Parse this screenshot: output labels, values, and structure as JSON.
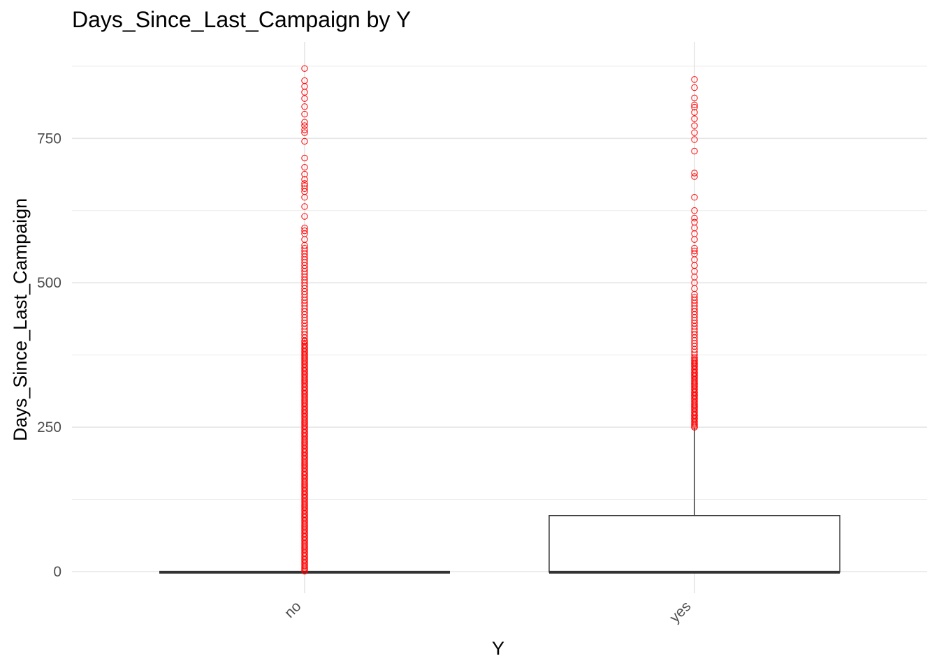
{
  "chart_data": {
    "type": "box",
    "title": "Days_Since_Last_Campaign by Y",
    "xlabel": "Y",
    "ylabel": "Days_Since_Last_Campaign",
    "categories": [
      "no",
      "yes"
    ],
    "ylim": [
      -20,
      880
    ],
    "yticks": [
      0,
      250,
      500,
      750
    ],
    "grid": true,
    "x_tick_rotation": -45,
    "outlier_color": "#ff0000",
    "box_color": "#333333",
    "boxes": [
      {
        "category": "no",
        "min": -1,
        "q1": -1,
        "median": -1,
        "q3": -1,
        "max": -1,
        "outliers": [
          1,
          400,
          405,
          410,
          415,
          420,
          425,
          430,
          435,
          440,
          445,
          450,
          455,
          460,
          465,
          470,
          475,
          480,
          485,
          490,
          495,
          500,
          505,
          510,
          515,
          520,
          525,
          530,
          535,
          540,
          545,
          550,
          555,
          560,
          565,
          575,
          585,
          590,
          595,
          615,
          632,
          648,
          658,
          663,
          668,
          672,
          679,
          688,
          700,
          716,
          745,
          760,
          765,
          772,
          778,
          792,
          805,
          819,
          830,
          840,
          850,
          871
        ]
      },
      {
        "category": "yes",
        "min": -1,
        "q1": -1,
        "median": -1,
        "q3": 97,
        "max": 249,
        "outliers": [
          250,
          255,
          260,
          265,
          270,
          275,
          280,
          285,
          290,
          295,
          300,
          305,
          310,
          315,
          320,
          325,
          330,
          335,
          340,
          345,
          350,
          355,
          360,
          365,
          370,
          375,
          380,
          385,
          390,
          395,
          400,
          405,
          410,
          415,
          420,
          425,
          430,
          435,
          440,
          445,
          450,
          455,
          460,
          465,
          470,
          475,
          480,
          490,
          500,
          510,
          520,
          530,
          540,
          550,
          555,
          560,
          575,
          585,
          595,
          605,
          612,
          625,
          648,
          684,
          690,
          728,
          748,
          760,
          772,
          784,
          795,
          804,
          808,
          820,
          838,
          852
        ]
      }
    ]
  }
}
